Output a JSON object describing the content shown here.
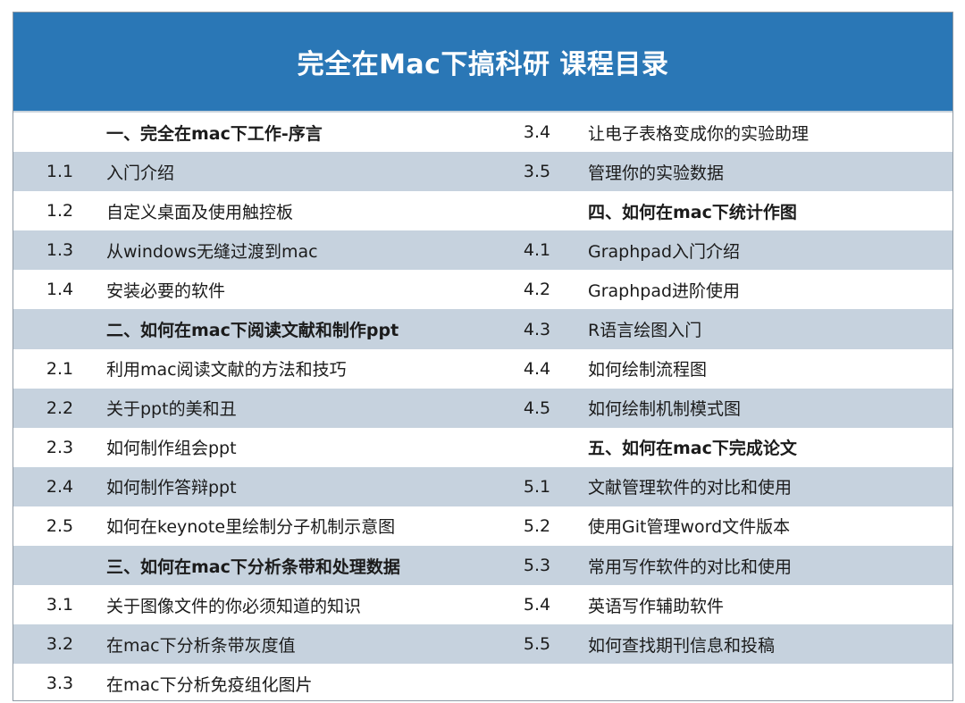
{
  "title": "完全在Mac下搞科研 课程目录",
  "rows": [
    {
      "ln": "",
      "lt": "一、完全在mac下工作-序言",
      "lb": true,
      "rn": "3.4",
      "rt": "让电子表格变成你的实验助理",
      "rb": false
    },
    {
      "ln": "1.1",
      "lt": "入门介绍",
      "lb": false,
      "rn": "3.5",
      "rt": "管理你的实验数据",
      "rb": false
    },
    {
      "ln": "1.2",
      "lt": "自定义桌面及使用触控板",
      "lb": false,
      "rn": "",
      "rt": "四、如何在mac下统计作图",
      "rb": true
    },
    {
      "ln": "1.3",
      "lt": "从windows无缝过渡到mac",
      "lb": false,
      "rn": "4.1",
      "rt": "Graphpad入门介绍",
      "rb": false
    },
    {
      "ln": "1.4",
      "lt": "安装必要的软件",
      "lb": false,
      "rn": "4.2",
      "rt": "Graphpad进阶使用",
      "rb": false
    },
    {
      "ln": "",
      "lt": "二、如何在mac下阅读文献和制作ppt",
      "lb": true,
      "rn": "4.3",
      "rt": "R语言绘图入门",
      "rb": false
    },
    {
      "ln": "2.1",
      "lt": "利用mac阅读文献的方法和技巧",
      "lb": false,
      "rn": "4.4",
      "rt": "如何绘制流程图",
      "rb": false
    },
    {
      "ln": "2.2",
      "lt": "关于ppt的美和丑",
      "lb": false,
      "rn": "4.5",
      "rt": "如何绘制机制模式图",
      "rb": false
    },
    {
      "ln": "2.3",
      "lt": "如何制作组会ppt",
      "lb": false,
      "rn": "",
      "rt": "五、如何在mac下完成论文",
      "rb": true
    },
    {
      "ln": "2.4",
      "lt": "如何制作答辩ppt",
      "lb": false,
      "rn": "5.1",
      "rt": "文献管理软件的对比和使用",
      "rb": false
    },
    {
      "ln": "2.5",
      "lt": "如何在keynote里绘制分子机制示意图",
      "lb": false,
      "rn": "5.2",
      "rt": "使用Git管理word文件版本",
      "rb": false
    },
    {
      "ln": "",
      "lt": "三、如何在mac下分析条带和处理数据",
      "lb": true,
      "rn": "5.3",
      "rt": "常用写作软件的对比和使用",
      "rb": false
    },
    {
      "ln": "3.1",
      "lt": "关于图像文件的你必须知道的知识",
      "lb": false,
      "rn": "5.4",
      "rt": "英语写作辅助软件",
      "rb": false
    },
    {
      "ln": "3.2",
      "lt": "在mac下分析条带灰度值",
      "lb": false,
      "rn": "5.5",
      "rt": "如何查找期刊信息和投稿",
      "rb": false
    },
    {
      "ln": "3.3",
      "lt": "在mac下分析免疫组化图片",
      "lb": false,
      "rn": "",
      "rt": "",
      "rb": false
    }
  ],
  "colors": {
    "header_bg": "#2a77b6",
    "header_text": "#ffffff",
    "row_shade": "#c6d2de",
    "text": "#1b1b1b"
  }
}
